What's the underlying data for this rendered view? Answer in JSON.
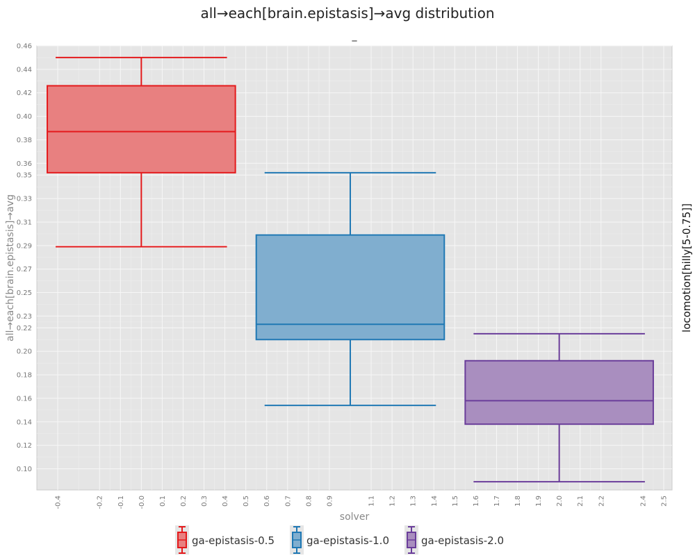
{
  "chart_data": {
    "type": "box",
    "title": "all→each[brain.epistasis]→avg distribution",
    "subtitle": "_",
    "xlabel": "solver",
    "ylabel": "all→each[brain.epistasis]→avg",
    "facet_label": "locomotion[hilly[5-0.75]]",
    "grid": true,
    "legend_position": "bottom",
    "ylim": [
      0.082,
      0.46
    ],
    "y_ticks": [
      0.1,
      0.12,
      0.14,
      0.16,
      0.18,
      0.2,
      0.22,
      0.23,
      0.25,
      0.27,
      0.29,
      0.31,
      0.33,
      0.35,
      0.36,
      0.38,
      0.4,
      0.42,
      0.44,
      0.46
    ],
    "y_tick_labels": [
      "0.10",
      "0.12",
      "0.14",
      "0.16",
      "0.18",
      "0.20",
      "0.22",
      "0.23",
      "0.25",
      "0.27",
      "0.29",
      "0.31",
      "0.33",
      "0.35",
      "0.36",
      "0.38",
      "0.40",
      "0.42",
      "0.44",
      "0.46"
    ],
    "xlim": [
      -0.5,
      2.54
    ],
    "x_ticks": [
      -0.4,
      -0.2,
      -0.1,
      0.0,
      0.1,
      0.2,
      0.3,
      0.4,
      0.5,
      0.6,
      0.7,
      0.8,
      0.9,
      1.1,
      1.2,
      1.3,
      1.4,
      1.5,
      1.6,
      1.7,
      1.8,
      1.9,
      2.0,
      2.1,
      2.2,
      2.4,
      2.5
    ],
    "x_tick_labels": [
      "-0.4",
      "-0.2",
      "-0.1",
      "-0.0",
      "0.1",
      "0.2",
      "0.3",
      "0.4",
      "0.5",
      "0.6",
      "0.7",
      "0.8",
      "0.9",
      "1.1",
      "1.2",
      "1.3",
      "1.4",
      "1.5",
      "1.6",
      "1.7",
      "1.8",
      "1.9",
      "2.0",
      "2.1",
      "2.2",
      "2.4",
      "2.5"
    ],
    "series": [
      {
        "name": "ga-epistasis-0.5",
        "x": 0,
        "whisker_low": 0.289,
        "q1": 0.352,
        "median": 0.387,
        "q3": 0.426,
        "whisker_high": 0.45,
        "color": "#e41a1c",
        "fill": "#e88080"
      },
      {
        "name": "ga-epistasis-1.0",
        "x": 1,
        "whisker_low": 0.154,
        "q1": 0.21,
        "median": 0.223,
        "q3": 0.299,
        "whisker_high": 0.352,
        "color": "#1f78b4",
        "fill": "#80aecf"
      },
      {
        "name": "ga-epistasis-2.0",
        "x": 2,
        "whisker_low": 0.089,
        "q1": 0.138,
        "median": 0.158,
        "q3": 0.192,
        "whisker_high": 0.215,
        "color": "#6a3d9a",
        "fill": "#a98ebf"
      }
    ]
  }
}
